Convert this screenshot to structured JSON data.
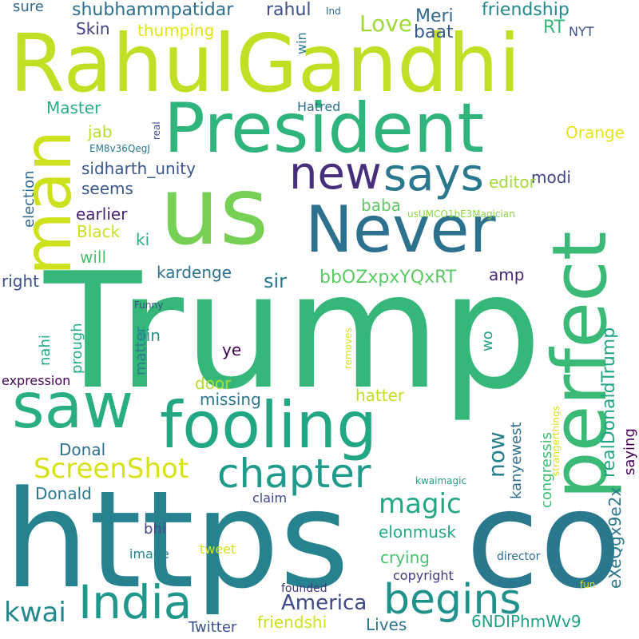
{
  "words": [
    {
      "text": "Trump",
      "color": "#35b779"
    },
    {
      "text": "https",
      "color": "#26828e"
    },
    {
      "text": "co",
      "color": "#2a788e"
    },
    {
      "text": "RahulGandhi",
      "color": "#c0df25"
    },
    {
      "text": "us",
      "color": "#75d054"
    },
    {
      "text": "President",
      "color": "#2fb47c"
    },
    {
      "text": "Never",
      "color": "#2c728e"
    },
    {
      "text": "perfect",
      "color": "#3aba76"
    },
    {
      "text": "man",
      "color": "#cde11d"
    },
    {
      "text": "saw",
      "color": "#29af7f"
    },
    {
      "text": "fooling",
      "color": "#22a785"
    },
    {
      "text": "new",
      "color": "#472f7d"
    },
    {
      "text": "says",
      "color": "#2a788e"
    },
    {
      "text": "India",
      "color": "#1f988b"
    },
    {
      "text": "begins",
      "color": "#21918c"
    },
    {
      "text": "chapter",
      "color": "#1e9b8a"
    },
    {
      "text": "ScreenShot",
      "color": "#d8e219"
    },
    {
      "text": "magic",
      "color": "#22a884"
    },
    {
      "text": "kwai",
      "color": "#23898e"
    },
    {
      "text": "America",
      "color": "#3e4989"
    },
    {
      "text": "now",
      "color": "#277f8e"
    },
    {
      "text": "bbOZxpxYQxRT",
      "color": "#5ec962"
    },
    {
      "text": "realDonaldTrump",
      "color": "#20a486"
    },
    {
      "text": "sir",
      "color": "#2a788e"
    },
    {
      "text": "amp",
      "color": "#482576"
    },
    {
      "text": "Love",
      "color": "#a0da39"
    },
    {
      "text": "Meri",
      "color": "#31688e"
    },
    {
      "text": "baat",
      "color": "#365c8d"
    },
    {
      "text": "friendship",
      "color": "#238a8d"
    },
    {
      "text": "RT",
      "color": "#35b779"
    },
    {
      "text": "NYT",
      "color": "#3b528b"
    },
    {
      "text": "shubhammpatidar",
      "color": "#2d708e"
    },
    {
      "text": "rahul",
      "color": "#3b528b"
    },
    {
      "text": "sure",
      "color": "#31688e"
    },
    {
      "text": "Ind",
      "color": "#31688e"
    },
    {
      "text": "win",
      "color": "#2a788e"
    },
    {
      "text": "Skin",
      "color": "#424086"
    },
    {
      "text": "thumping",
      "color": "#e2e418"
    },
    {
      "text": "Master",
      "color": "#29af7f"
    },
    {
      "text": "Hatred",
      "color": "#2c728e"
    },
    {
      "text": "real",
      "color": "#3e4989"
    },
    {
      "text": "jab",
      "color": "#b5de2b"
    },
    {
      "text": "EM8v36QegJ",
      "color": "#2a788e"
    },
    {
      "text": "Orange",
      "color": "#e5e419"
    },
    {
      "text": "election",
      "color": "#31688e"
    },
    {
      "text": "sidharth_unity",
      "color": "#39568c"
    },
    {
      "text": "seems",
      "color": "#39568c"
    },
    {
      "text": "modi",
      "color": "#414487"
    },
    {
      "text": "editor",
      "color": "#a2da37"
    },
    {
      "text": "baba",
      "color": "#5ec962"
    },
    {
      "text": "earlier",
      "color": "#481f70"
    },
    {
      "text": "usUMCO1bE3Magician",
      "color": "#8fd744"
    },
    {
      "text": "Black",
      "color": "#cae11f"
    },
    {
      "text": "ki",
      "color": "#29af7f"
    },
    {
      "text": "will",
      "color": "#4ac16d"
    },
    {
      "text": "kardenge",
      "color": "#2c728e"
    },
    {
      "text": "right",
      "color": "#3b528b"
    },
    {
      "text": "Funny",
      "color": "#3e4989"
    },
    {
      "text": "matter",
      "color": "#287c8e"
    },
    {
      "text": "din",
      "color": "#1f988b"
    },
    {
      "text": "prough",
      "color": "#29af7f"
    },
    {
      "text": "nahi",
      "color": "#22a884"
    },
    {
      "text": "ye",
      "color": "#440154"
    },
    {
      "text": "removes",
      "color": "#d2e21b"
    },
    {
      "text": "wo",
      "color": "#20a386"
    },
    {
      "text": "expression",
      "color": "#450457"
    },
    {
      "text": "door",
      "color": "#b0dd2f"
    },
    {
      "text": "hatter",
      "color": "#bddf26"
    },
    {
      "text": "missing",
      "color": "#2a768e"
    },
    {
      "text": "saying",
      "color": "#440154"
    },
    {
      "text": "kanyewest",
      "color": "#2e6f8e"
    },
    {
      "text": "strangerthings",
      "color": "#d8e219"
    },
    {
      "text": "congressis",
      "color": "#3fbc73"
    },
    {
      "text": "Donal",
      "color": "#2d718e"
    },
    {
      "text": "Donald",
      "color": "#2a778e"
    },
    {
      "text": "kwaimagic",
      "color": "#1fa188"
    },
    {
      "text": "claim",
      "color": "#3f4788"
    },
    {
      "text": "bhi",
      "color": "#3e4c8a"
    },
    {
      "text": "elonmusk",
      "color": "#23a983"
    },
    {
      "text": "eXeQgx9e2x",
      "color": "#2a788e"
    },
    {
      "text": "image",
      "color": "#26828e"
    },
    {
      "text": "tweet",
      "color": "#d0e11c"
    },
    {
      "text": "crying",
      "color": "#48c16e"
    },
    {
      "text": "director",
      "color": "#2e6e8e"
    },
    {
      "text": "copyright",
      "color": "#443983"
    },
    {
      "text": "founded",
      "color": "#453781"
    },
    {
      "text": "fun",
      "color": "#dde318"
    },
    {
      "text": "6NDIPhmWv9",
      "color": "#1fa287"
    },
    {
      "text": "friendshi",
      "color": "#cde11d"
    },
    {
      "text": "Lives",
      "color": "#2c738e"
    },
    {
      "text": "Twitter",
      "color": "#3b528b"
    }
  ]
}
